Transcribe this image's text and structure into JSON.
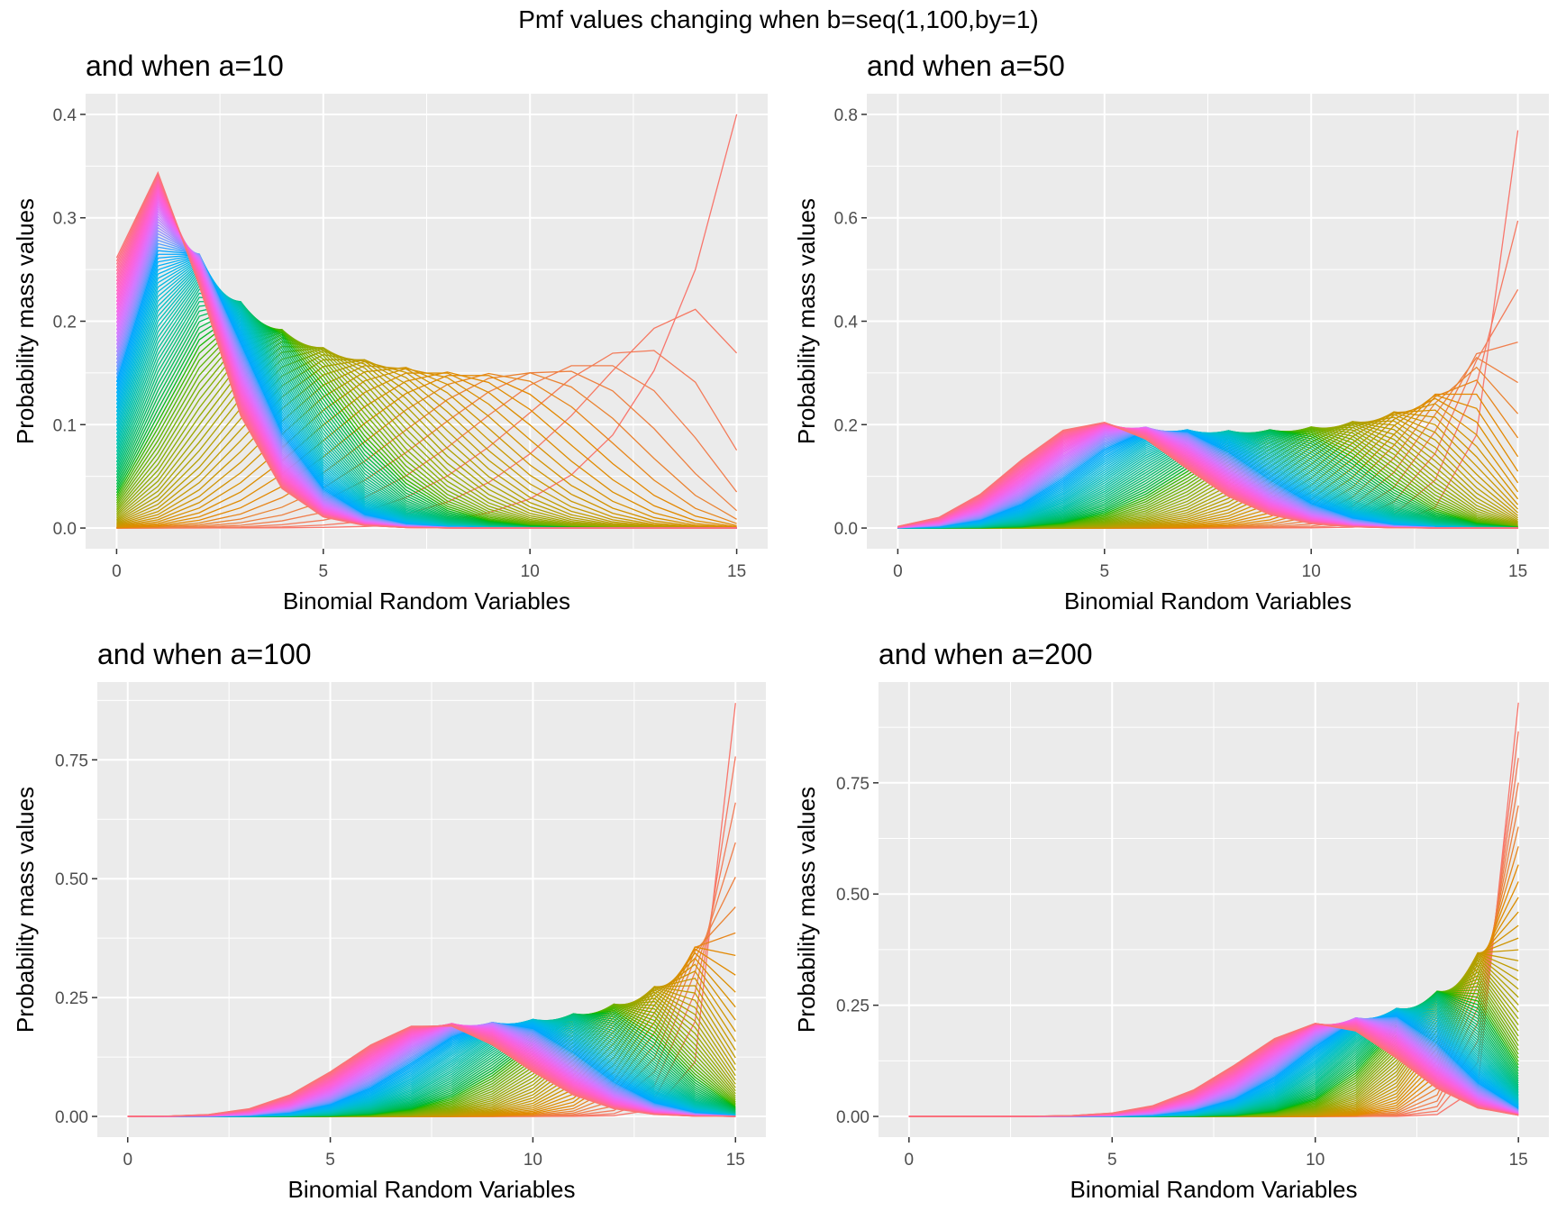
{
  "figure": {
    "title": "Pmf values changing when b=seq(1,100,by=1)"
  },
  "chart_data": [
    {
      "type": "line",
      "title": "and when a=10",
      "xlabel": "Binomial Random Variables",
      "ylabel": "Probability mass values",
      "x": [
        0,
        1,
        2,
        3,
        4,
        5,
        6,
        7,
        8,
        9,
        10,
        11,
        12,
        13,
        14,
        15
      ],
      "xlim": [
        0,
        15
      ],
      "ylim": [
        0,
        0.4
      ],
      "xticks": [
        "0",
        "5",
        "10",
        "15"
      ],
      "yticks": [
        "0.0",
        "0.1",
        "0.2",
        "0.3",
        "0.4"
      ],
      "series_generator": {
        "n": 15,
        "a": 10,
        "b_from": 1,
        "b_to": 100,
        "by": 1
      },
      "color_scale": "hue",
      "legend": "none",
      "grid": true
    },
    {
      "type": "line",
      "title": "and when a=50",
      "xlabel": "Binomial Random Variables",
      "ylabel": "Probability mass values",
      "x": [
        0,
        1,
        2,
        3,
        4,
        5,
        6,
        7,
        8,
        9,
        10,
        11,
        12,
        13,
        14,
        15
      ],
      "xlim": [
        0,
        15
      ],
      "ylim": [
        0,
        0.8
      ],
      "xticks": [
        "0",
        "5",
        "10",
        "15"
      ],
      "yticks": [
        "0.0",
        "0.2",
        "0.4",
        "0.6",
        "0.8"
      ],
      "series_generator": {
        "n": 15,
        "a": 50,
        "b_from": 1,
        "b_to": 100,
        "by": 1
      },
      "color_scale": "hue",
      "legend": "none",
      "grid": true
    },
    {
      "type": "line",
      "title": "and when a=100",
      "xlabel": "Binomial Random Variables",
      "ylabel": "Probability mass values",
      "x": [
        0,
        1,
        2,
        3,
        4,
        5,
        6,
        7,
        8,
        9,
        10,
        11,
        12,
        13,
        14,
        15
      ],
      "xlim": [
        0,
        15
      ],
      "ylim": [
        0,
        0.87
      ],
      "xticks": [
        "0",
        "5",
        "10",
        "15"
      ],
      "yticks": [
        "0.00",
        "0.25",
        "0.50",
        "0.75"
      ],
      "series_generator": {
        "n": 15,
        "a": 100,
        "b_from": 1,
        "b_to": 100,
        "by": 1
      },
      "color_scale": "hue",
      "legend": "none",
      "grid": true
    },
    {
      "type": "line",
      "title": "and when a=200",
      "xlabel": "Binomial Random Variables",
      "ylabel": "Probability mass values",
      "x": [
        0,
        1,
        2,
        3,
        4,
        5,
        6,
        7,
        8,
        9,
        10,
        11,
        12,
        13,
        14,
        15
      ],
      "xlim": [
        0,
        15
      ],
      "ylim": [
        0,
        0.93
      ],
      "xticks": [
        "0",
        "5",
        "10",
        "15"
      ],
      "yticks": [
        "0.00",
        "0.25",
        "0.50",
        "0.75"
      ],
      "series_generator": {
        "n": 15,
        "a": 200,
        "b_from": 1,
        "b_to": 100,
        "by": 1
      },
      "color_scale": "hue",
      "legend": "none",
      "grid": true
    }
  ]
}
